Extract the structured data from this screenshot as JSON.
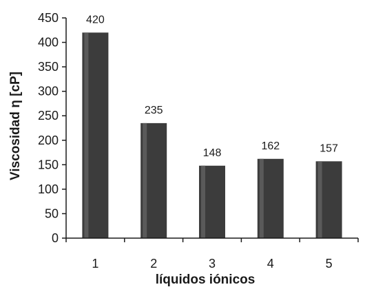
{
  "chart_data": {
    "type": "bar",
    "title": "",
    "xlabel": "líquidos iónicos",
    "ylabel": "Viscosidad η [cP]",
    "categories": [
      "1",
      "2",
      "3",
      "4",
      "5"
    ],
    "values": [
      420,
      235,
      148,
      162,
      157
    ],
    "data_labels": [
      "420",
      "235",
      "148",
      "162",
      "157"
    ],
    "ylim": [
      0,
      450
    ],
    "yticks": [
      0,
      50,
      100,
      150,
      200,
      250,
      300,
      350,
      400,
      450
    ],
    "grid": false,
    "legend": "none",
    "bar_color": "#3c3c3c",
    "axis_color": "#1a1a1a"
  }
}
